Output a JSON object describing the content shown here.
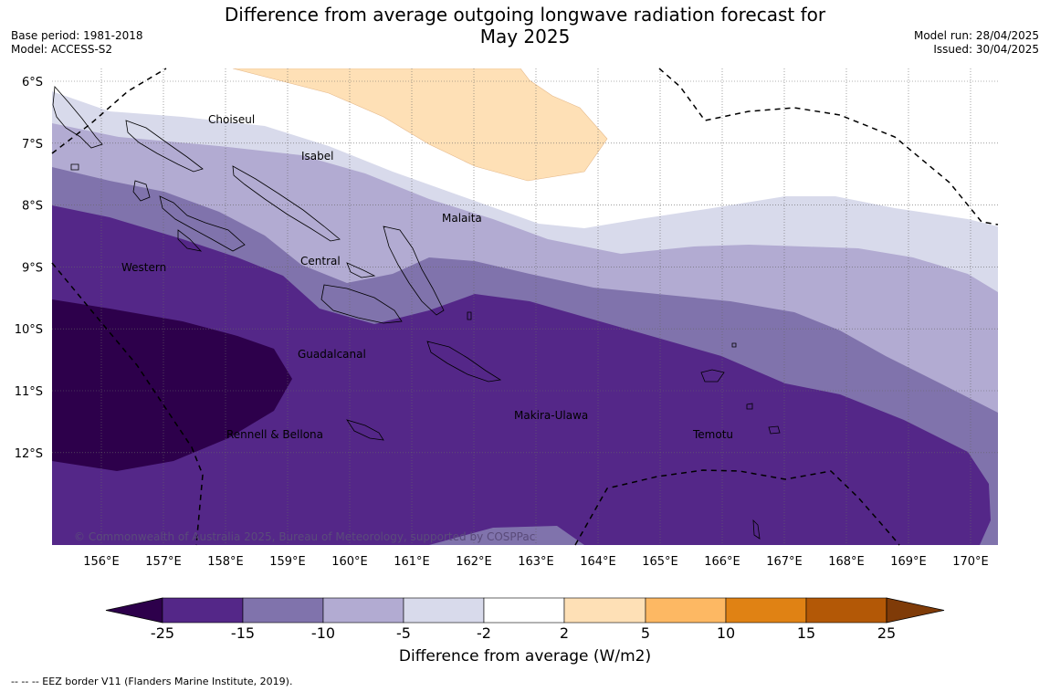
{
  "header": {
    "title_line1": "Difference from average outgoing longwave radiation forecast for",
    "title_line2": "May 2025",
    "base_period": "Base period: 1981-2018",
    "model": "Model: ACCESS-S2",
    "model_run": "Model run: 28/04/2025",
    "issued": "Issued: 30/04/2025"
  },
  "map": {
    "lat_labels": [
      "6°S",
      "7°S",
      "8°S",
      "9°S",
      "10°S",
      "11°S",
      "12°S"
    ],
    "lon_labels": [
      "156°E",
      "157°E",
      "158°E",
      "159°E",
      "160°E",
      "161°E",
      "162°E",
      "163°E",
      "164°E",
      "165°E",
      "166°E",
      "167°E",
      "168°E",
      "169°E",
      "170°E"
    ],
    "province_labels": [
      "Choiseul",
      "Isabel",
      "Malaita",
      "Western",
      "Central",
      "Guadalcanal",
      "Rennell & Bellona",
      "Makira-Ulawa",
      "Temotu"
    ],
    "copyright": "© Commonwealth of Australia 2025, Bureau of Meteorology, supported by COSPPac"
  },
  "colorbar": {
    "tick_labels": [
      "-25",
      "-15",
      "-10",
      "-5",
      "-2",
      "2",
      "5",
      "10",
      "15",
      "25"
    ],
    "colors": [
      "#2d004b",
      "#542788",
      "#8073ac",
      "#b2abd2",
      "#d8daeb",
      "#ffffff",
      "#fee0b6",
      "#fdb863",
      "#e08214",
      "#b35806",
      "#7f3b08"
    ],
    "title": "Difference from average (W/m2)"
  },
  "footnote": "--  --  -- EEZ border V11 (Flanders Marine Institute, 2019)."
}
